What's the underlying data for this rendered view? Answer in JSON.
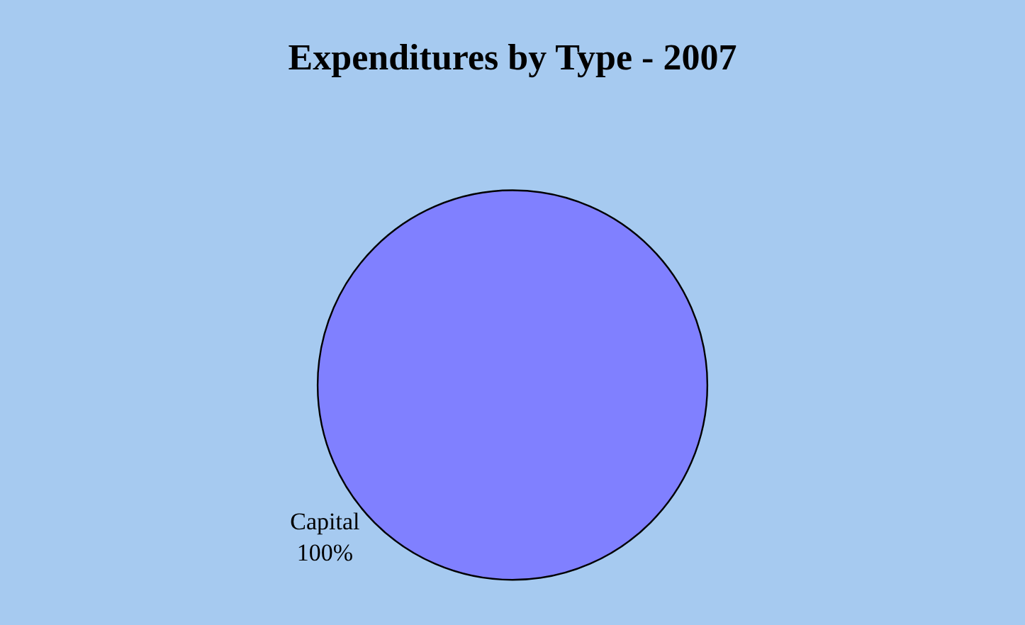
{
  "chart_data": {
    "type": "pie",
    "title": "Expenditures by Type - 2007",
    "categories": [
      "Capital"
    ],
    "values": [
      100
    ],
    "colors": [
      "#8080ff"
    ],
    "value_labels": [
      "100%"
    ],
    "legend": false
  }
}
